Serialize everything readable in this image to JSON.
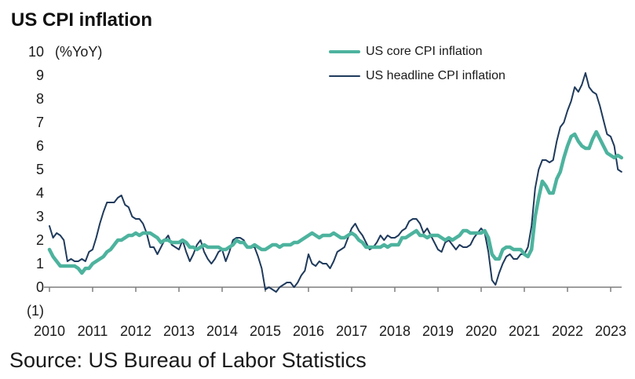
{
  "header": {
    "title": "US CPI inflation"
  },
  "source": {
    "text": "Source: US Bureau of Labor Statistics"
  },
  "chart_data": {
    "type": "line",
    "title": "US CPI inflation",
    "unit_label": "(%YoY)",
    "x_frequency": "monthly",
    "x_start": "2010-01",
    "x_end": "2023-04",
    "x_tick_labels": [
      "2010",
      "2011",
      "2012",
      "2013",
      "2014",
      "2015",
      "2016",
      "2017",
      "2018",
      "2019",
      "2020",
      "2021",
      "2022",
      "2023"
    ],
    "y_tick_labels": [
      "10",
      "9",
      "8",
      "7",
      "6",
      "5",
      "4",
      "3",
      "2",
      "1",
      "0",
      "(1)"
    ],
    "ylim": [
      -1,
      10
    ],
    "grid": false,
    "legend_position": "top-right-inside",
    "axis_color": "#7f7f7f",
    "text_color": "#1a1a1a",
    "series": [
      {
        "name": "US core CPI inflation",
        "color": "#4db39e",
        "stroke_width": 4.5,
        "values": [
          1.6,
          1.3,
          1.1,
          0.9,
          0.9,
          0.9,
          0.9,
          0.9,
          0.8,
          0.6,
          0.8,
          0.8,
          1.0,
          1.1,
          1.2,
          1.3,
          1.5,
          1.6,
          1.8,
          2.0,
          2.0,
          2.1,
          2.2,
          2.2,
          2.3,
          2.2,
          2.3,
          2.3,
          2.3,
          2.2,
          2.1,
          1.9,
          2.0,
          2.0,
          1.9,
          1.9,
          1.9,
          2.0,
          1.9,
          1.7,
          1.7,
          1.6,
          1.7,
          1.8,
          1.7,
          1.7,
          1.7,
          1.7,
          1.6,
          1.6,
          1.7,
          1.8,
          2.0,
          1.9,
          1.9,
          1.7,
          1.7,
          1.8,
          1.7,
          1.6,
          1.6,
          1.7,
          1.8,
          1.8,
          1.7,
          1.8,
          1.8,
          1.8,
          1.9,
          1.9,
          2.0,
          2.1,
          2.2,
          2.3,
          2.2,
          2.1,
          2.2,
          2.2,
          2.2,
          2.3,
          2.2,
          2.1,
          2.1,
          2.2,
          2.3,
          2.2,
          2.0,
          1.9,
          1.7,
          1.7,
          1.7,
          1.7,
          1.7,
          1.8,
          1.7,
          1.8,
          1.8,
          1.8,
          2.1,
          2.1,
          2.2,
          2.3,
          2.4,
          2.2,
          2.2,
          2.1,
          2.2,
          2.2,
          2.2,
          2.1,
          2.0,
          2.1,
          2.0,
          2.1,
          2.2,
          2.4,
          2.4,
          2.3,
          2.3,
          2.3,
          2.3,
          2.4,
          2.1,
          1.4,
          1.2,
          1.2,
          1.6,
          1.7,
          1.7,
          1.6,
          1.6,
          1.6,
          1.4,
          1.3,
          1.6,
          3.0,
          3.8,
          4.5,
          4.3,
          4.0,
          4.0,
          4.6,
          4.9,
          5.5,
          6.0,
          6.4,
          6.5,
          6.2,
          6.0,
          5.9,
          5.9,
          6.3,
          6.6,
          6.3,
          6.0,
          5.7,
          5.6,
          5.5,
          5.6,
          5.5
        ]
      },
      {
        "name": "US headline CPI inflation",
        "color": "#1f3a5c",
        "stroke_width": 2,
        "values": [
          2.6,
          2.1,
          2.3,
          2.2,
          2.0,
          1.1,
          1.2,
          1.1,
          1.1,
          1.2,
          1.1,
          1.5,
          1.6,
          2.1,
          2.7,
          3.2,
          3.6,
          3.6,
          3.6,
          3.8,
          3.9,
          3.5,
          3.4,
          3.0,
          2.9,
          2.9,
          2.7,
          2.3,
          1.7,
          1.7,
          1.4,
          1.7,
          2.0,
          2.2,
          1.8,
          1.7,
          1.6,
          2.0,
          1.5,
          1.1,
          1.4,
          1.8,
          2.0,
          1.5,
          1.2,
          1.0,
          1.2,
          1.5,
          1.6,
          1.1,
          1.5,
          2.0,
          2.1,
          2.1,
          2.0,
          1.7,
          1.7,
          1.7,
          1.3,
          0.8,
          -0.1,
          0.0,
          -0.1,
          -0.2,
          0.0,
          0.1,
          0.2,
          0.2,
          0.0,
          0.2,
          0.5,
          0.7,
          1.4,
          1.0,
          0.9,
          1.1,
          1.0,
          1.0,
          0.8,
          1.1,
          1.5,
          1.6,
          1.7,
          2.1,
          2.5,
          2.7,
          2.4,
          2.2,
          1.9,
          1.6,
          1.7,
          1.9,
          2.2,
          2.0,
          2.2,
          2.1,
          2.1,
          2.2,
          2.4,
          2.5,
          2.8,
          2.9,
          2.9,
          2.7,
          2.3,
          2.5,
          2.2,
          1.9,
          1.6,
          1.5,
          1.9,
          2.0,
          1.8,
          1.6,
          1.8,
          1.7,
          1.7,
          1.8,
          2.1,
          2.3,
          2.5,
          2.3,
          1.5,
          0.3,
          0.1,
          0.6,
          1.0,
          1.3,
          1.4,
          1.2,
          1.2,
          1.4,
          1.4,
          1.7,
          2.6,
          4.2,
          5.0,
          5.4,
          5.4,
          5.3,
          5.4,
          6.2,
          6.8,
          7.0,
          7.5,
          7.9,
          8.5,
          8.3,
          8.6,
          9.1,
          8.5,
          8.3,
          8.2,
          7.7,
          7.1,
          6.5,
          6.4,
          6.0,
          5.0,
          4.9
        ]
      }
    ]
  }
}
